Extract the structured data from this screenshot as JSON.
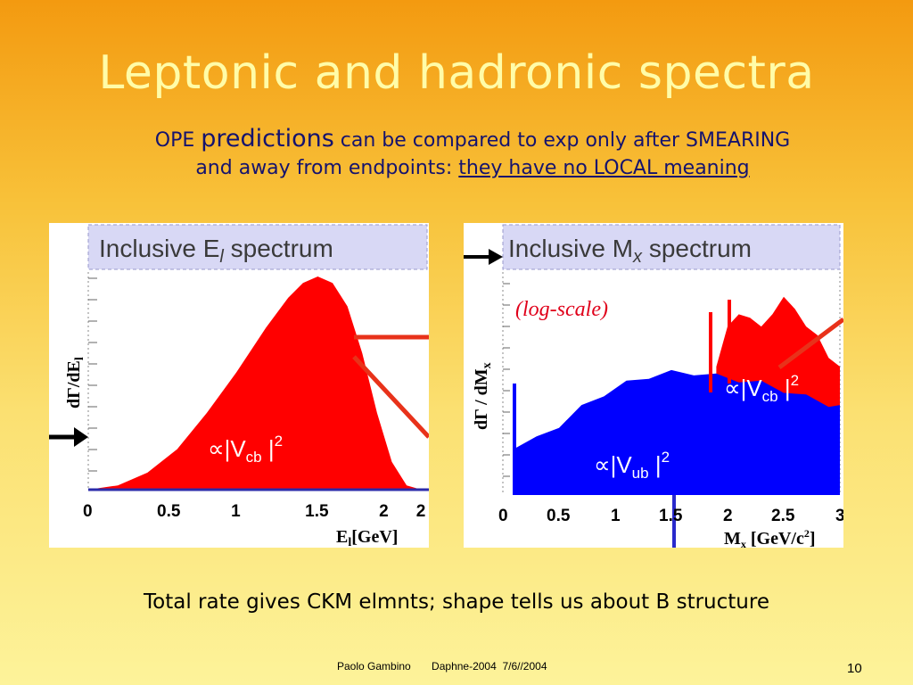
{
  "slide": {
    "title": "Leptonic and hadronic spectra",
    "subtitle_line1": {
      "pre": "OPE ",
      "big": "predictions",
      "post": " can be compared to exp only after SMEARING"
    },
    "subtitle_line2": {
      "pre": "and away from endpoints: ",
      "underlined": "they have no LOCAL meaning"
    },
    "caption": "Total rate gives CKM elmnts; shape tells us about B structure",
    "footer": "Paolo Gambino       Daphne-2004  7/6//2004",
    "page_number": "10"
  },
  "colors": {
    "red_fill": "#ff0000",
    "blue_fill": "#0000ff",
    "banner": "#d8d8f5",
    "arrow": "#e8321a"
  },
  "chart_data": [
    {
      "type": "area",
      "title": "Inclusive E_l spectrum",
      "ylabel": "dΓ/dE_l",
      "xlabel": "E_l[GeV]",
      "xticks": [
        "0",
        "0.5",
        "1",
        "1.5",
        "2",
        "2"
      ],
      "xlim": [
        0,
        2.3
      ],
      "annotation": "∝|V_cb|²",
      "series": [
        {
          "name": "",
          "color": "#ff0000",
          "x": [
            0,
            0.2,
            0.4,
            0.6,
            0.8,
            1.0,
            1.2,
            1.35,
            1.45,
            1.55,
            1.65,
            1.75,
            1.85,
            1.95,
            2.05,
            2.15,
            2.25
          ],
          "y": [
            0.0,
            0.02,
            0.08,
            0.19,
            0.36,
            0.55,
            0.76,
            0.9,
            0.97,
            1.0,
            0.97,
            0.86,
            0.64,
            0.36,
            0.13,
            0.02,
            0.0
          ]
        }
      ]
    },
    {
      "type": "area",
      "title": "Inclusive M_x spectrum",
      "ylabel": "dΓ / dM_x",
      "xlabel": "M_x [GeV/c²]",
      "yscale": "log",
      "xticks": [
        "0",
        "0.5",
        "1",
        "1.5",
        "2",
        "2.5",
        "3"
      ],
      "xlim": [
        0,
        3
      ],
      "annotation_log": "(log-scale)",
      "annotations": [
        "∝|V_cb|²",
        "∝|V_ub|²"
      ],
      "series": [
        {
          "name": "",
          "color": "#0000ff",
          "x": [
            0.1,
            0.3,
            0.5,
            0.7,
            0.9,
            1.1,
            1.3,
            1.5,
            1.7,
            1.9,
            2.1,
            2.3,
            2.5,
            2.7,
            2.9,
            3.0
          ],
          "y": [
            0.28,
            0.32,
            0.4,
            0.5,
            0.58,
            0.64,
            0.68,
            0.7,
            0.7,
            0.68,
            0.66,
            0.64,
            0.6,
            0.56,
            0.52,
            0.5
          ]
        },
        {
          "name": "",
          "color": "#ff0000",
          "x": [
            1.9,
            2.0,
            2.1,
            2.2,
            2.3,
            2.4,
            2.5,
            2.6,
            2.7,
            2.8,
            2.9,
            3.0
          ],
          "y": [
            0.75,
            0.95,
            1.05,
            1.0,
            0.98,
            1.02,
            1.15,
            1.05,
            0.98,
            0.9,
            0.8,
            0.72
          ]
        }
      ]
    }
  ]
}
